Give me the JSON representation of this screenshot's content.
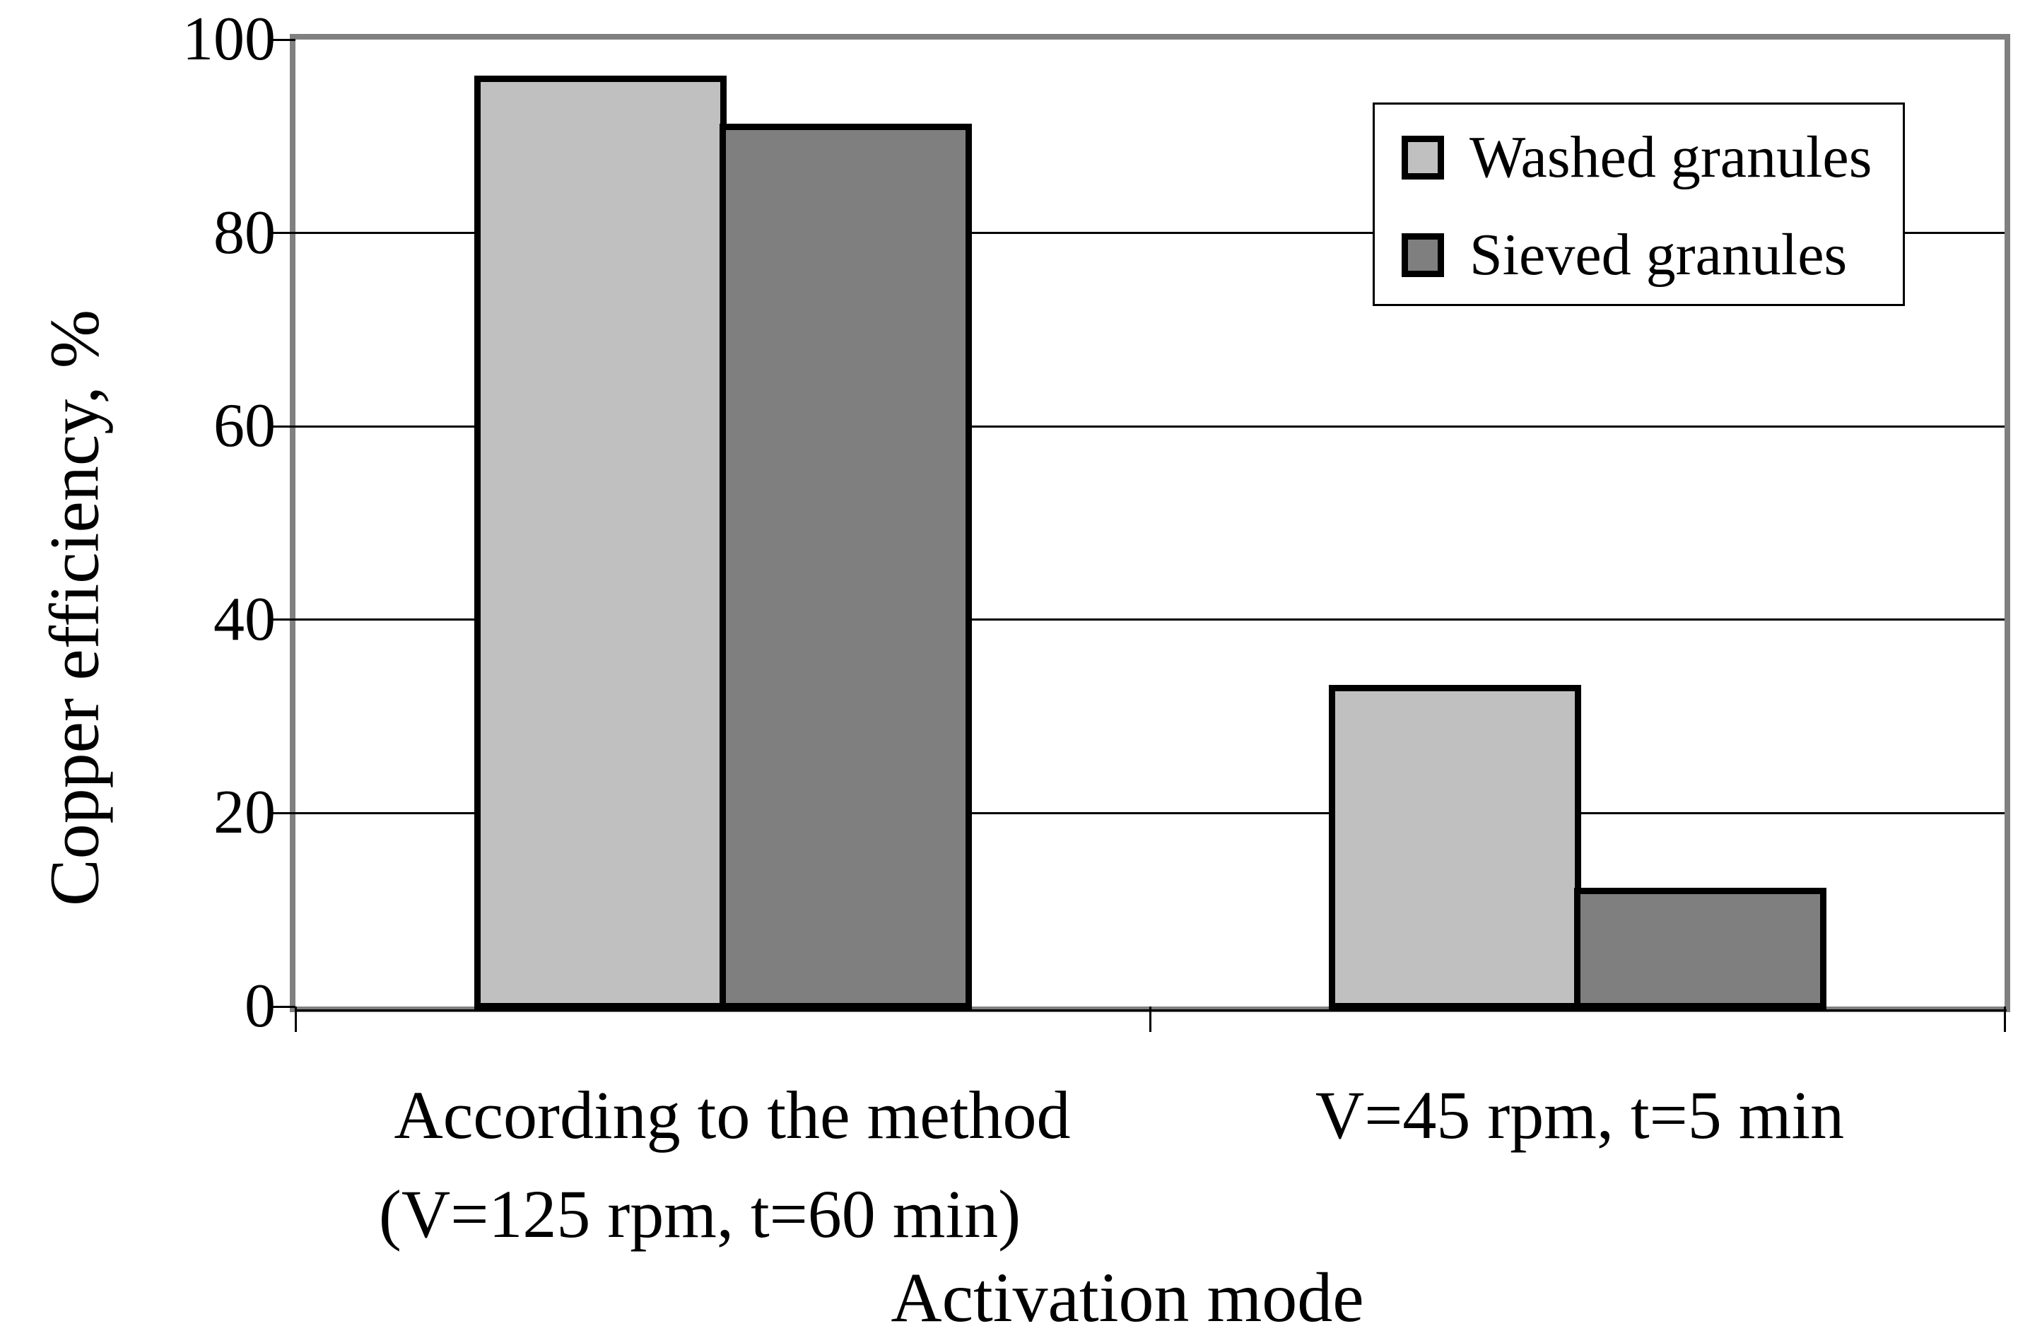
{
  "chart_data": {
    "type": "bar",
    "title": "",
    "categories": [
      "According to the method (V=125 rpm, t=60 min)",
      "V=45 rpm, t=5 min"
    ],
    "categories_display": [
      {
        "line1": "According to the method",
        "line2": "(V=125 rpm, t=60 min)"
      },
      {
        "line1": "V=45 rpm, t=5 min",
        "line2": ""
      }
    ],
    "series": [
      {
        "name": "Washed granules",
        "values": [
          96,
          33
        ],
        "color": "#c0c0c0"
      },
      {
        "name": "Sieved granules",
        "values": [
          91,
          12
        ],
        "color": "#7f7f7f"
      }
    ],
    "xlabel": "Activation mode",
    "ylabel": "Copper efficiency, %",
    "ylim": [
      0,
      100
    ],
    "yticks": [
      0,
      20,
      40,
      60,
      80,
      100
    ],
    "ytick_labels": [
      "0",
      "20",
      "40",
      "60",
      "80",
      "100"
    ],
    "grid": "horizontal",
    "legend_position": "top-right",
    "frame_color": "#808080",
    "grid_color": "#000000",
    "bar_border_color": "#000000",
    "background_color": "#ffffff"
  }
}
